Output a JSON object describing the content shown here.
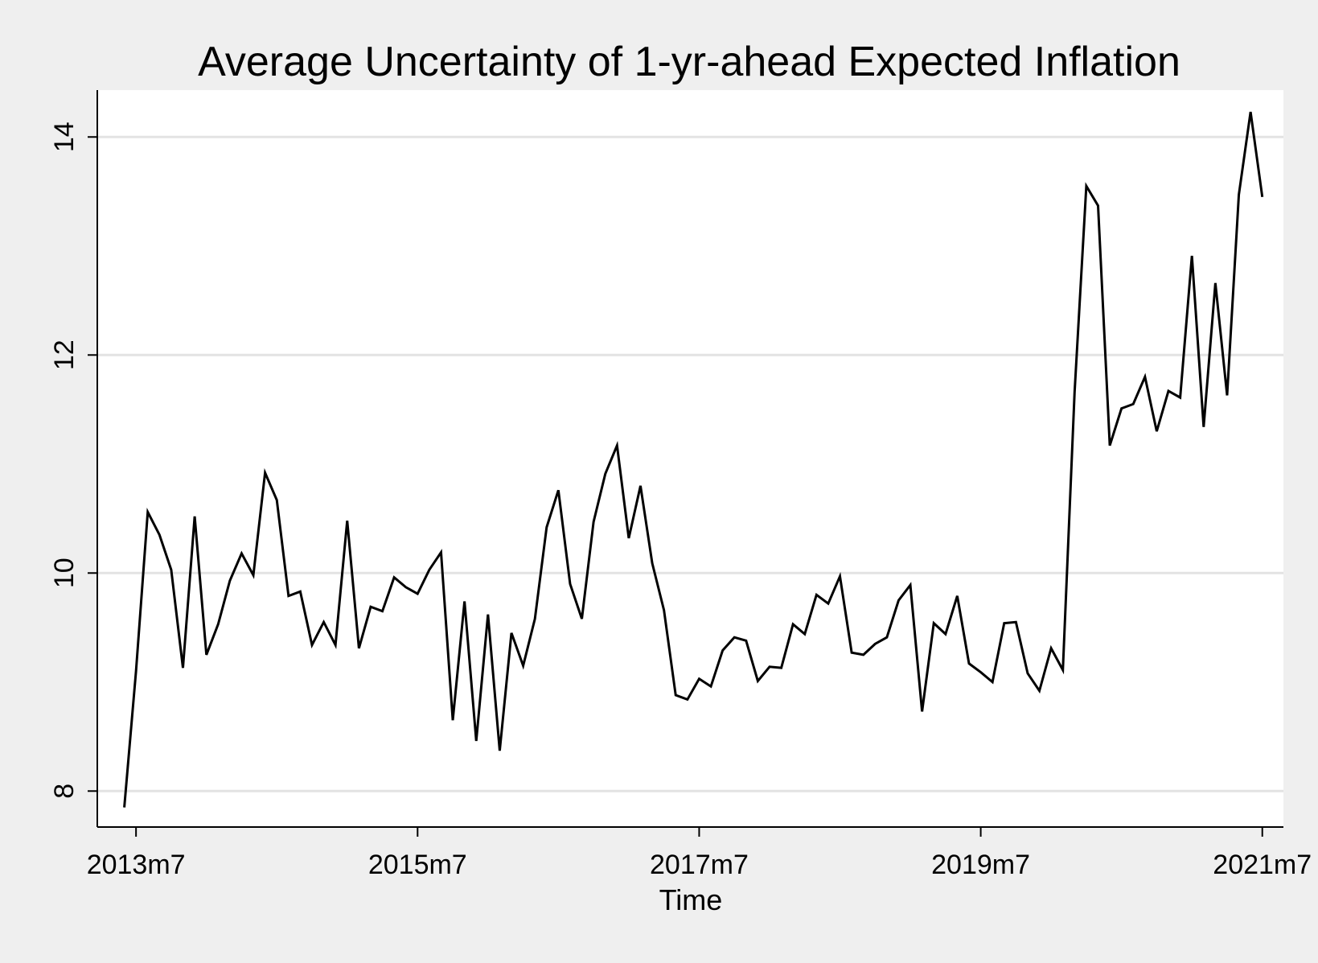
{
  "chart_data": {
    "type": "line",
    "title": "Average Uncertainty of 1-yr-ahead Expected Inflation",
    "xlabel": "Time",
    "ylabel": "",
    "x_ticks": [
      {
        "label": "2013m7",
        "index": 0
      },
      {
        "label": "2015m7",
        "index": 24
      },
      {
        "label": "2017m7",
        "index": 48
      },
      {
        "label": "2019m7",
        "index": 72
      },
      {
        "label": "2021m7",
        "index": 96
      }
    ],
    "y_ticks": [
      8,
      10,
      12,
      14
    ],
    "xlim_months": [
      -3.3,
      97.8
    ],
    "ylim": [
      7.67,
      14.43
    ],
    "grid": true,
    "line_color": "#000000",
    "plot_background": "#ffffff",
    "page_background": "#efefef",
    "gridline_color": "#e3e3e3",
    "series": [
      {
        "start": "2013m6",
        "values": [
          7.85,
          9.1,
          10.56,
          10.35,
          10.03,
          9.13,
          10.52,
          9.25,
          9.53,
          9.93,
          10.18,
          9.98,
          10.92,
          10.67,
          9.79,
          9.83,
          9.34,
          9.55,
          9.34,
          10.48,
          9.31,
          9.69,
          9.65,
          9.96,
          9.87,
          9.81,
          10.03,
          10.19,
          8.65,
          9.74,
          8.46,
          9.62,
          8.37,
          9.45,
          9.15,
          9.58,
          10.42,
          10.76,
          9.9,
          9.58,
          10.47,
          10.91,
          11.17,
          10.32,
          10.8,
          10.09,
          9.66,
          8.88,
          8.84,
          9.03,
          8.96,
          9.29,
          9.41,
          9.38,
          9.01,
          9.14,
          9.13,
          9.53,
          9.44,
          9.8,
          9.72,
          9.97,
          9.27,
          9.25,
          9.35,
          9.41,
          9.75,
          9.89,
          8.73,
          9.54,
          9.44,
          9.79,
          9.17,
          9.09,
          9.0,
          9.54,
          9.55,
          9.08,
          8.92,
          9.31,
          9.11,
          11.66,
          13.55,
          13.37,
          11.17,
          11.51,
          11.55,
          11.8,
          11.3,
          11.67,
          11.61,
          12.91,
          11.34,
          12.66,
          11.63,
          13.47,
          14.23,
          13.45
        ]
      }
    ]
  }
}
